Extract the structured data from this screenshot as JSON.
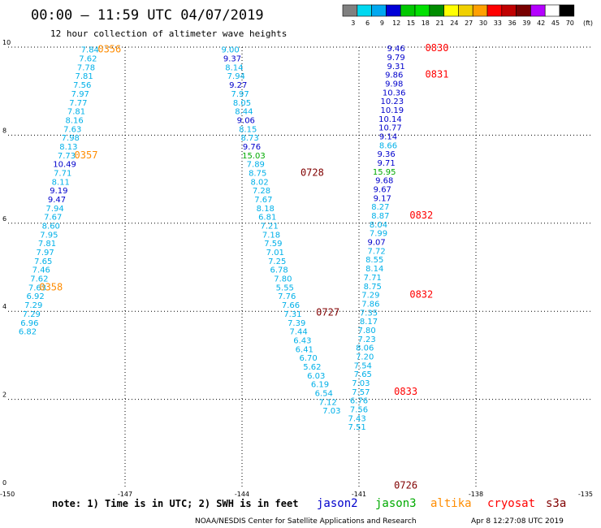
{
  "header": {
    "title": "00:00 – 11:59 UTC 04/07/2019",
    "subtitle": "12 hour collection of altimeter wave heights"
  },
  "colorbar": {
    "labels": [
      "3",
      "6",
      "9",
      "12",
      "15",
      "18",
      "21",
      "24",
      "27",
      "30",
      "33",
      "36",
      "39",
      "42",
      "45",
      "70"
    ],
    "unit": "(ft)",
    "colors": [
      "#808080",
      "#00d8f0",
      "#00a8f0",
      "#0000d8",
      "#00c800",
      "#00e000",
      "#008c00",
      "#ffff00",
      "#f0d000",
      "#ffa000",
      "#ff0000",
      "#c00000",
      "#780000",
      "#b400ff",
      "#ffffff",
      "#000000"
    ]
  },
  "footer": {
    "note": "note: 1) Time is in UTC; 2) SWH is in feet",
    "credit": "NOAA/NESDIS Center for Satellite Applications and Research",
    "generated": "Apr  8 12:27:08 UTC 2019"
  },
  "legend": [
    {
      "name": "jason2",
      "color": "#0000cc"
    },
    {
      "name": "jason3",
      "color": "#00aa00"
    },
    {
      "name": "altika",
      "color": "#ff8c00"
    },
    {
      "name": "cryosat",
      "color": "#ff0000"
    },
    {
      "name": "s3a",
      "color": "#800000"
    }
  ],
  "chart_data": {
    "type": "scatter",
    "xlim": [
      -150,
      -135
    ],
    "ylim": [
      0,
      10
    ],
    "xticks": [
      "-150",
      "-147",
      "-144",
      "-141",
      "-138",
      "-135"
    ],
    "yticks": [
      "0",
      "2",
      "4",
      "6",
      "8",
      "10"
    ],
    "grid": true,
    "colors": {
      "light": "#00b0e8",
      "blue": "#0000cc",
      "green": "#00aa00",
      "orange": "#ff8c00",
      "red": "#ff0000",
      "maroon": "#800000"
    },
    "series": [
      {
        "points": [
          {
            "x": -147.9,
            "y": 9.95,
            "v": "7.84",
            "c": "light"
          },
          {
            "x": -147.95,
            "y": 9.75,
            "v": "7.62",
            "c": "light"
          },
          {
            "x": -148.0,
            "y": 9.55,
            "v": "7.78",
            "c": "light"
          },
          {
            "x": -148.05,
            "y": 9.35,
            "v": "7.81",
            "c": "light"
          },
          {
            "x": -148.1,
            "y": 9.15,
            "v": "7.56",
            "c": "light"
          },
          {
            "x": -148.15,
            "y": 8.95,
            "v": "7.97",
            "c": "light"
          },
          {
            "x": -148.2,
            "y": 8.75,
            "v": "7.77",
            "c": "light"
          },
          {
            "x": -148.25,
            "y": 8.55,
            "v": "7.81",
            "c": "light"
          },
          {
            "x": -148.3,
            "y": 8.35,
            "v": "8.16",
            "c": "light"
          },
          {
            "x": -148.35,
            "y": 8.15,
            "v": "7.63",
            "c": "light"
          },
          {
            "x": -148.4,
            "y": 7.95,
            "v": "7.98",
            "c": "light"
          },
          {
            "x": -148.45,
            "y": 7.75,
            "v": "8.13",
            "c": "light"
          },
          {
            "x": -148.5,
            "y": 7.55,
            "v": "7.73",
            "c": "light"
          },
          {
            "x": -148.55,
            "y": 7.35,
            "v": "10.49",
            "c": "blue"
          },
          {
            "x": -148.6,
            "y": 7.15,
            "v": "7.71",
            "c": "light"
          },
          {
            "x": -148.65,
            "y": 6.95,
            "v": "8.11",
            "c": "light"
          },
          {
            "x": -148.7,
            "y": 6.75,
            "v": "9.19",
            "c": "blue"
          },
          {
            "x": -148.75,
            "y": 6.55,
            "v": "9.47",
            "c": "blue"
          },
          {
            "x": -148.8,
            "y": 6.35,
            "v": "7.94",
            "c": "light"
          },
          {
            "x": -148.85,
            "y": 6.15,
            "v": "7.67",
            "c": "light"
          },
          {
            "x": -148.9,
            "y": 5.95,
            "v": "8.60",
            "c": "light"
          },
          {
            "x": -148.95,
            "y": 5.75,
            "v": "7.95",
            "c": "light"
          },
          {
            "x": -149.0,
            "y": 5.55,
            "v": "7.81",
            "c": "light"
          },
          {
            "x": -149.05,
            "y": 5.35,
            "v": "7.97",
            "c": "light"
          },
          {
            "x": -149.1,
            "y": 5.15,
            "v": "7.65",
            "c": "light"
          },
          {
            "x": -149.15,
            "y": 4.95,
            "v": "7.46",
            "c": "light"
          },
          {
            "x": -149.2,
            "y": 4.75,
            "v": "7.62",
            "c": "light"
          },
          {
            "x": -149.25,
            "y": 4.55,
            "v": "7.63",
            "c": "light"
          },
          {
            "x": -149.3,
            "y": 4.35,
            "v": "6.92",
            "c": "light"
          },
          {
            "x": -149.35,
            "y": 4.15,
            "v": "7.29",
            "c": "light"
          },
          {
            "x": -149.4,
            "y": 3.95,
            "v": "7.29",
            "c": "light"
          },
          {
            "x": -149.45,
            "y": 3.75,
            "v": "6.96",
            "c": "light"
          },
          {
            "x": -149.5,
            "y": 3.55,
            "v": "6.82",
            "c": "light"
          }
        ]
      },
      {
        "points": [
          {
            "x": -144.3,
            "y": 9.95,
            "v": "9.00",
            "c": "light"
          },
          {
            "x": -144.25,
            "y": 9.75,
            "v": "9.37",
            "c": "blue"
          },
          {
            "x": -144.2,
            "y": 9.55,
            "v": "8.14",
            "c": "light"
          },
          {
            "x": -144.15,
            "y": 9.35,
            "v": "7.94",
            "c": "light"
          },
          {
            "x": -144.1,
            "y": 9.15,
            "v": "9.27",
            "c": "blue"
          },
          {
            "x": -144.05,
            "y": 8.95,
            "v": "7.97",
            "c": "light"
          },
          {
            "x": -144.0,
            "y": 8.75,
            "v": "8.05",
            "c": "light"
          },
          {
            "x": -143.95,
            "y": 8.55,
            "v": "8.44",
            "c": "light"
          },
          {
            "x": -143.9,
            "y": 8.35,
            "v": "9.06",
            "c": "blue"
          },
          {
            "x": -143.85,
            "y": 8.15,
            "v": "8.15",
            "c": "light"
          },
          {
            "x": -143.8,
            "y": 7.95,
            "v": "8.73",
            "c": "light"
          },
          {
            "x": -143.75,
            "y": 7.75,
            "v": "9.76",
            "c": "blue"
          },
          {
            "x": -143.7,
            "y": 7.55,
            "v": "15.03",
            "c": "green"
          },
          {
            "x": -143.65,
            "y": 7.35,
            "v": "7.89",
            "c": "light"
          },
          {
            "x": -143.6,
            "y": 7.15,
            "v": "8.75",
            "c": "light"
          },
          {
            "x": -143.55,
            "y": 6.95,
            "v": "8.02",
            "c": "light"
          },
          {
            "x": -143.5,
            "y": 6.75,
            "v": "7.28",
            "c": "light"
          },
          {
            "x": -143.45,
            "y": 6.55,
            "v": "7.67",
            "c": "light"
          },
          {
            "x": -143.4,
            "y": 6.35,
            "v": "8.18",
            "c": "light"
          },
          {
            "x": -143.35,
            "y": 6.15,
            "v": "6.81",
            "c": "light"
          },
          {
            "x": -143.3,
            "y": 5.95,
            "v": "7.21",
            "c": "light"
          },
          {
            "x": -143.25,
            "y": 5.75,
            "v": "7.18",
            "c": "light"
          },
          {
            "x": -143.2,
            "y": 5.55,
            "v": "7.59",
            "c": "light"
          },
          {
            "x": -143.15,
            "y": 5.35,
            "v": "7.01",
            "c": "light"
          },
          {
            "x": -143.1,
            "y": 5.15,
            "v": "7.25",
            "c": "light"
          },
          {
            "x": -143.05,
            "y": 4.95,
            "v": "6.78",
            "c": "light"
          },
          {
            "x": -142.95,
            "y": 4.75,
            "v": "7.80",
            "c": "light"
          },
          {
            "x": -142.9,
            "y": 4.55,
            "v": "5.55",
            "c": "light"
          },
          {
            "x": -142.85,
            "y": 4.35,
            "v": "7.76",
            "c": "light"
          },
          {
            "x": -142.75,
            "y": 4.15,
            "v": "7.66",
            "c": "light"
          },
          {
            "x": -142.7,
            "y": 3.95,
            "v": "7.31",
            "c": "light"
          },
          {
            "x": -142.6,
            "y": 3.75,
            "v": "7.39",
            "c": "light"
          },
          {
            "x": -142.55,
            "y": 3.55,
            "v": "7.44",
            "c": "light"
          },
          {
            "x": -142.45,
            "y": 3.35,
            "v": "6.43",
            "c": "light"
          },
          {
            "x": -142.4,
            "y": 3.15,
            "v": "6.41",
            "c": "light"
          },
          {
            "x": -142.3,
            "y": 2.95,
            "v": "6.70",
            "c": "light"
          },
          {
            "x": -142.2,
            "y": 2.75,
            "v": "5.62",
            "c": "light"
          },
          {
            "x": -142.1,
            "y": 2.55,
            "v": "6.03",
            "c": "light"
          },
          {
            "x": -142.0,
            "y": 2.35,
            "v": "6.19",
            "c": "light"
          },
          {
            "x": -141.9,
            "y": 2.15,
            "v": "6.54",
            "c": "light"
          },
          {
            "x": -141.8,
            "y": 1.95,
            "v": "7.12",
            "c": "light"
          },
          {
            "x": -141.7,
            "y": 1.75,
            "v": "7.03",
            "c": "light"
          }
        ]
      },
      {
        "points": [
          {
            "x": -140.05,
            "y": 9.98,
            "v": "9.46",
            "c": "blue"
          },
          {
            "x": -140.05,
            "y": 9.78,
            "v": "9.79",
            "c": "blue"
          },
          {
            "x": -140.05,
            "y": 9.58,
            "v": "9.31",
            "c": "blue"
          },
          {
            "x": -140.1,
            "y": 9.38,
            "v": "9.86",
            "c": "blue"
          },
          {
            "x": -140.1,
            "y": 9.18,
            "v": "9.98",
            "c": "blue"
          },
          {
            "x": -140.1,
            "y": 8.98,
            "v": "10.36",
            "c": "blue"
          },
          {
            "x": -140.15,
            "y": 8.78,
            "v": "10.23",
            "c": "blue"
          },
          {
            "x": -140.15,
            "y": 8.58,
            "v": "10.19",
            "c": "blue"
          },
          {
            "x": -140.2,
            "y": 8.38,
            "v": "10.14",
            "c": "blue"
          },
          {
            "x": -140.2,
            "y": 8.18,
            "v": "10.77",
            "c": "blue"
          },
          {
            "x": -140.25,
            "y": 7.98,
            "v": "9.14",
            "c": "blue"
          },
          {
            "x": -140.25,
            "y": 7.78,
            "v": "8.66",
            "c": "light"
          },
          {
            "x": -140.3,
            "y": 7.58,
            "v": "9.36",
            "c": "blue"
          },
          {
            "x": -140.3,
            "y": 7.38,
            "v": "9.71",
            "c": "blue"
          },
          {
            "x": -140.35,
            "y": 7.18,
            "v": "15.95",
            "c": "green"
          },
          {
            "x": -140.35,
            "y": 6.98,
            "v": "9.68",
            "c": "blue"
          },
          {
            "x": -140.4,
            "y": 6.78,
            "v": "9.67",
            "c": "blue"
          },
          {
            "x": -140.4,
            "y": 6.58,
            "v": "9.17",
            "c": "blue"
          },
          {
            "x": -140.45,
            "y": 6.38,
            "v": "8.27",
            "c": "light"
          },
          {
            "x": -140.45,
            "y": 6.18,
            "v": "8.87",
            "c": "light"
          },
          {
            "x": -140.5,
            "y": 5.98,
            "v": "8.04",
            "c": "light"
          },
          {
            "x": -140.5,
            "y": 5.78,
            "v": "7.99",
            "c": "light"
          },
          {
            "x": -140.55,
            "y": 5.58,
            "v": "9.07",
            "c": "blue"
          },
          {
            "x": -140.55,
            "y": 5.38,
            "v": "7.72",
            "c": "light"
          },
          {
            "x": -140.6,
            "y": 5.18,
            "v": "8.55",
            "c": "light"
          },
          {
            "x": -140.6,
            "y": 4.98,
            "v": "8.14",
            "c": "light"
          },
          {
            "x": -140.65,
            "y": 4.78,
            "v": "7.71",
            "c": "light"
          },
          {
            "x": -140.65,
            "y": 4.58,
            "v": "8.75",
            "c": "light"
          },
          {
            "x": -140.7,
            "y": 4.38,
            "v": "7.29",
            "c": "light"
          },
          {
            "x": -140.7,
            "y": 4.18,
            "v": "7.86",
            "c": "light"
          },
          {
            "x": -140.75,
            "y": 3.98,
            "v": "7.35",
            "c": "light"
          },
          {
            "x": -140.75,
            "y": 3.78,
            "v": "8.17",
            "c": "light"
          },
          {
            "x": -140.8,
            "y": 3.58,
            "v": "7.80",
            "c": "light"
          },
          {
            "x": -140.8,
            "y": 3.38,
            "v": "7.23",
            "c": "light"
          },
          {
            "x": -140.85,
            "y": 3.18,
            "v": "8.06",
            "c": "light"
          },
          {
            "x": -140.85,
            "y": 2.98,
            "v": "7.20",
            "c": "light"
          },
          {
            "x": -140.9,
            "y": 2.78,
            "v": "7.54",
            "c": "light"
          },
          {
            "x": -140.9,
            "y": 2.58,
            "v": "7.65",
            "c": "light"
          },
          {
            "x": -140.95,
            "y": 2.38,
            "v": "7.03",
            "c": "light"
          },
          {
            "x": -140.95,
            "y": 2.18,
            "v": "7.57",
            "c": "light"
          },
          {
            "x": -141.0,
            "y": 1.98,
            "v": "6.76",
            "c": "light"
          },
          {
            "x": -141.0,
            "y": 1.78,
            "v": "7.56",
            "c": "light"
          },
          {
            "x": -141.05,
            "y": 1.58,
            "v": "7.43",
            "c": "light"
          },
          {
            "x": -141.05,
            "y": 1.38,
            "v": "7.51",
            "c": "light"
          }
        ]
      }
    ],
    "time_labels": [
      {
        "x": -147.4,
        "y": 9.95,
        "t": "0356",
        "c": "orange"
      },
      {
        "x": -148.0,
        "y": 7.55,
        "t": "0357",
        "c": "orange"
      },
      {
        "x": -148.9,
        "y": 4.55,
        "t": "0358",
        "c": "orange"
      },
      {
        "x": -139.0,
        "y": 9.98,
        "t": "0830",
        "c": "red"
      },
      {
        "x": -139.0,
        "y": 9.38,
        "t": "0831",
        "c": "red"
      },
      {
        "x": -142.2,
        "y": 7.15,
        "t": "0728",
        "c": "maroon"
      },
      {
        "x": -139.4,
        "y": 6.18,
        "t": "0832",
        "c": "red"
      },
      {
        "x": -139.4,
        "y": 4.38,
        "t": "0832",
        "c": "red"
      },
      {
        "x": -141.8,
        "y": 3.98,
        "t": "0727",
        "c": "maroon"
      },
      {
        "x": -139.8,
        "y": 2.18,
        "t": "0833",
        "c": "red"
      },
      {
        "x": -139.8,
        "y": 0.05,
        "t": "0726",
        "c": "maroon"
      }
    ]
  }
}
